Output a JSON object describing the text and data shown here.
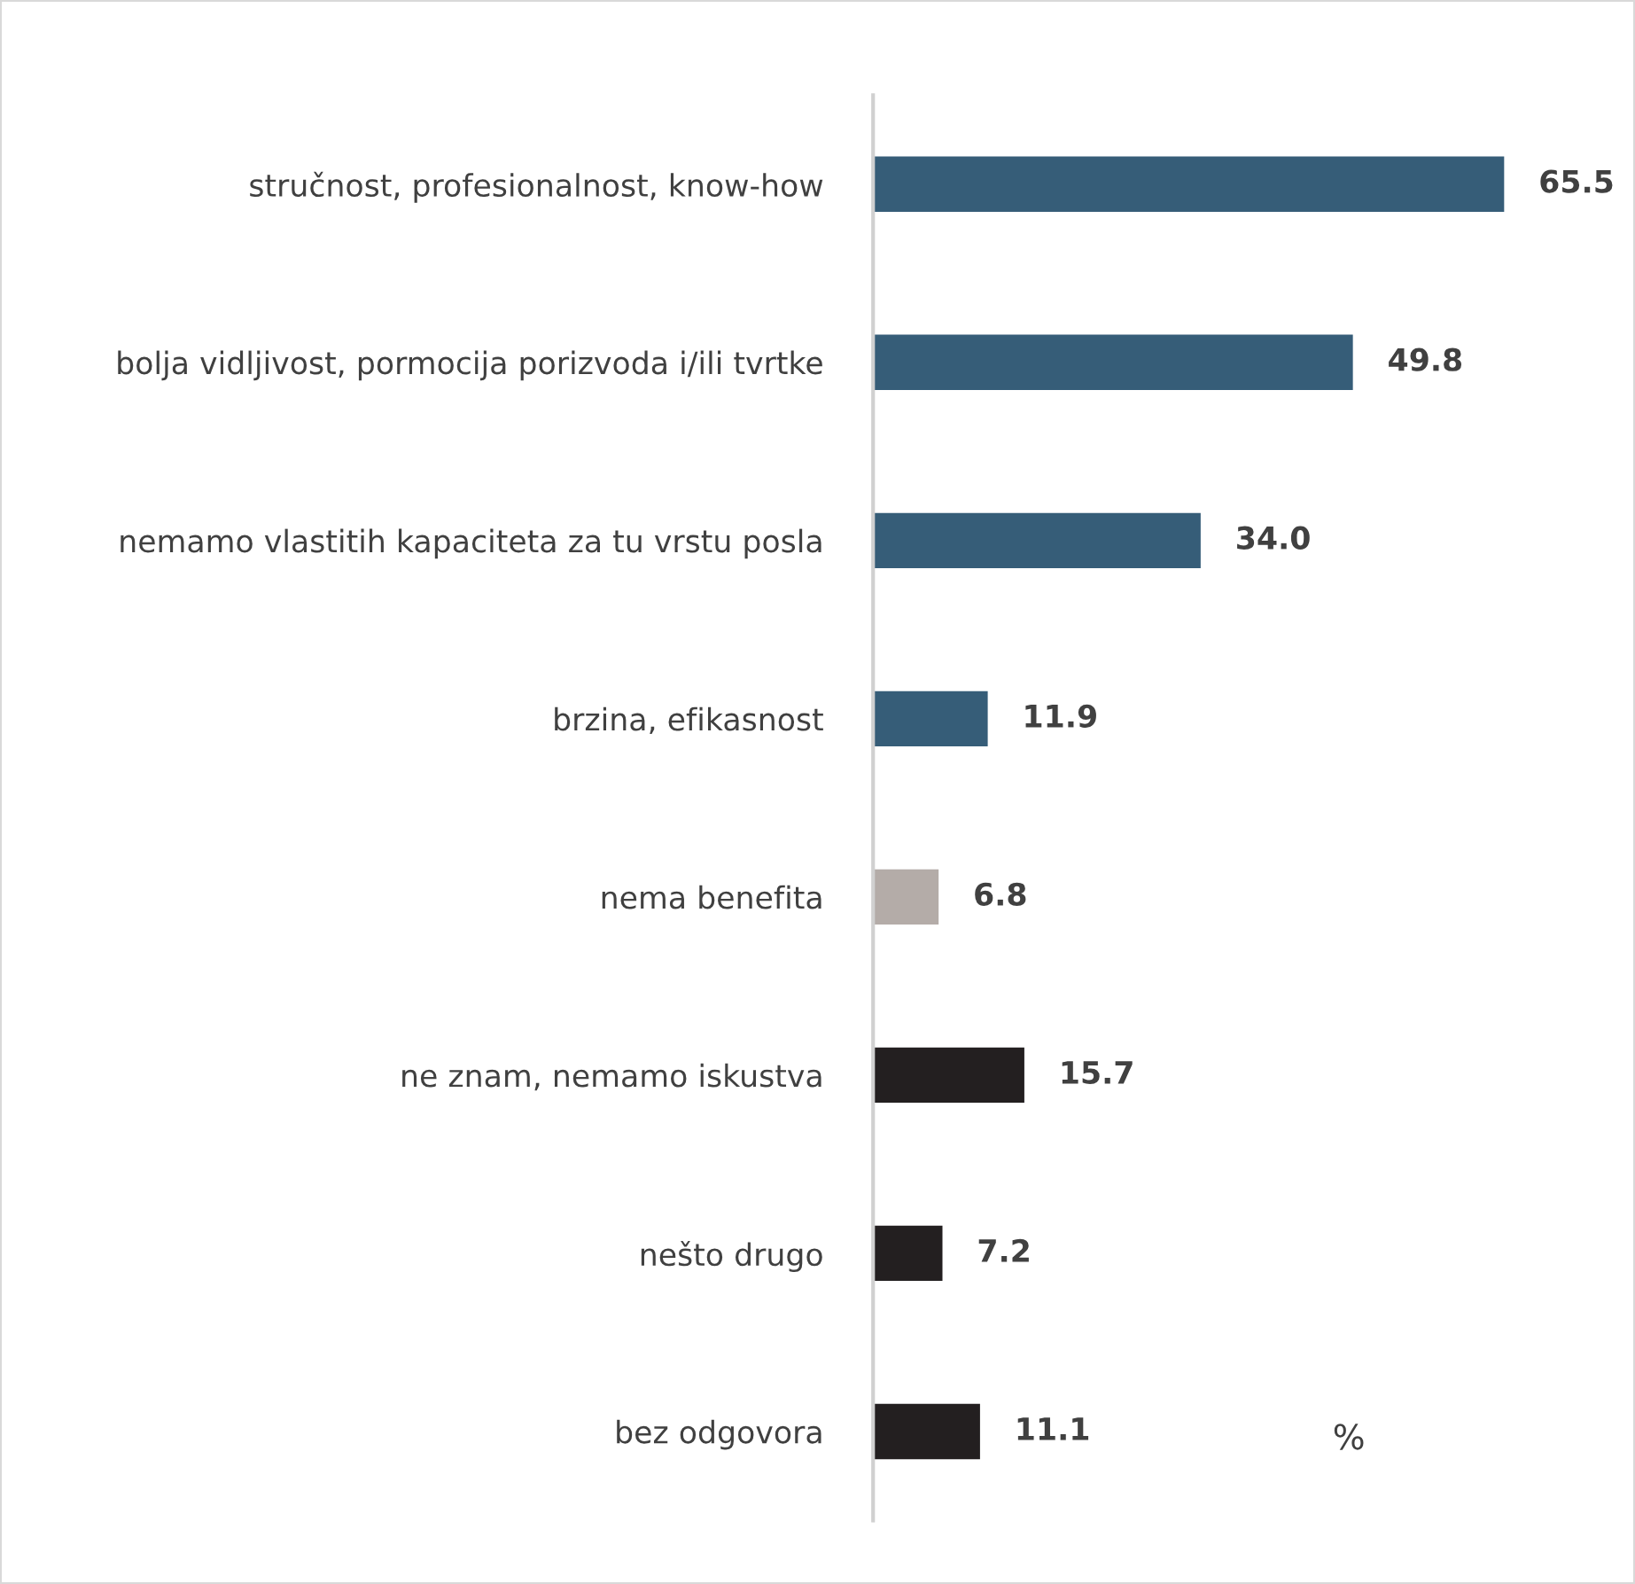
{
  "chart_data": {
    "type": "bar",
    "orientation": "horizontal",
    "value_labels": [
      "65.5",
      "49.8",
      "34.0",
      "11.9",
      "6.8",
      "15.7",
      "7.2",
      "11.1"
    ],
    "categories": [
      "stručnost, profesionalnost, know-how",
      "bolja vidljivost, pormocija porizvoda i/ili tvrtke",
      "nemamo vlastitih kapaciteta za tu vrstu posla",
      "brzina, efikasnost",
      "nema benefita",
      "ne znam, nemamo iskustva",
      "nešto drugo",
      "bez odgovora"
    ],
    "values": [
      65.5,
      49.8,
      34.0,
      11.9,
      6.8,
      15.7,
      7.2,
      11.1
    ],
    "colors": [
      "#365d78",
      "#365d78",
      "#365d78",
      "#365d78",
      "#b4aca8",
      "#231f20",
      "#231f20",
      "#231f20"
    ],
    "annotations": [
      "%"
    ],
    "grid": false,
    "legend": false
  }
}
